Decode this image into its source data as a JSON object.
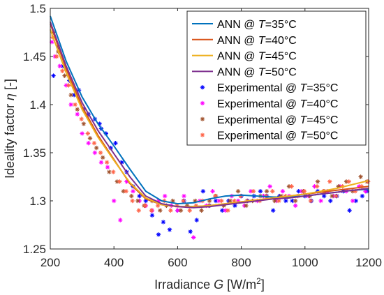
{
  "chart_data": {
    "type": "scatter",
    "xlabel": "Irradiance G [W/m²]",
    "ylabel": "Ideality factor η [-]",
    "xlim": [
      200,
      1200
    ],
    "ylim": [
      1.25,
      1.5
    ],
    "xticks": [
      200,
      400,
      600,
      800,
      1000,
      1200
    ],
    "yticks": [
      1.25,
      1.3,
      1.35,
      1.4,
      1.45,
      1.5
    ],
    "xtick_labels": [
      "200",
      "400",
      "600",
      "800",
      "1000",
      "1200"
    ],
    "ytick_labels": [
      "1.25",
      "1.3",
      "1.35",
      "1.4",
      "1.45",
      "1.5"
    ],
    "grid": false,
    "legend_position": "top-right",
    "lines": [
      {
        "name": "ANN @ T=35°C",
        "color": "#0072BD",
        "x": [
          200,
          250,
          300,
          350,
          400,
          450,
          500,
          550,
          600,
          650,
          700,
          750,
          800,
          850,
          900,
          950,
          1000,
          1050,
          1100,
          1150,
          1200
        ],
        "y": [
          1.492,
          1.445,
          1.408,
          1.38,
          1.357,
          1.333,
          1.31,
          1.3,
          1.297,
          1.298,
          1.302,
          1.305,
          1.306,
          1.305,
          1.304,
          1.304,
          1.305,
          1.307,
          1.309,
          1.311,
          1.312
        ]
      },
      {
        "name": "ANN @ T=40°C",
        "color": "#D95319",
        "x": [
          200,
          250,
          300,
          350,
          400,
          450,
          500,
          550,
          600,
          650,
          700,
          750,
          800,
          850,
          900,
          950,
          1000,
          1050,
          1100,
          1150,
          1200
        ],
        "y": [
          1.484,
          1.437,
          1.398,
          1.368,
          1.343,
          1.318,
          1.302,
          1.296,
          1.294,
          1.294,
          1.295,
          1.297,
          1.299,
          1.301,
          1.303,
          1.305,
          1.307,
          1.309,
          1.311,
          1.313,
          1.315
        ]
      },
      {
        "name": "ANN @ T=45°C",
        "color": "#EDB120",
        "x": [
          200,
          250,
          300,
          350,
          400,
          450,
          500,
          550,
          600,
          650,
          700,
          750,
          800,
          850,
          900,
          950,
          1000,
          1050,
          1100,
          1150,
          1200
        ],
        "y": [
          1.478,
          1.433,
          1.395,
          1.366,
          1.342,
          1.319,
          1.303,
          1.296,
          1.294,
          1.294,
          1.295,
          1.297,
          1.299,
          1.301,
          1.303,
          1.305,
          1.307,
          1.31,
          1.313,
          1.317,
          1.321
        ]
      },
      {
        "name": "ANN @ T=50°C",
        "color": "#7E2F8E",
        "x": [
          200,
          250,
          300,
          350,
          400,
          450,
          500,
          550,
          600,
          650,
          700,
          750,
          800,
          850,
          900,
          950,
          1000,
          1050,
          1100,
          1150,
          1200
        ],
        "y": [
          1.486,
          1.44,
          1.402,
          1.373,
          1.349,
          1.325,
          1.305,
          1.297,
          1.294,
          1.293,
          1.294,
          1.296,
          1.298,
          1.3,
          1.302,
          1.303,
          1.305,
          1.307,
          1.309,
          1.311,
          1.313
        ]
      }
    ],
    "scatter": [
      {
        "name": "Experimental @ T=35°C",
        "color": "#0000FF",
        "points": [
          [
            210,
            1.43
          ],
          [
            225,
            1.46
          ],
          [
            240,
            1.44
          ],
          [
            260,
            1.425
          ],
          [
            275,
            1.41
          ],
          [
            290,
            1.415
          ],
          [
            305,
            1.395
          ],
          [
            320,
            1.39
          ],
          [
            340,
            1.385
          ],
          [
            355,
            1.38
          ],
          [
            360,
            1.375
          ],
          [
            375,
            1.37
          ],
          [
            390,
            1.355
          ],
          [
            405,
            1.36
          ],
          [
            425,
            1.34
          ],
          [
            440,
            1.33
          ],
          [
            460,
            1.315
          ],
          [
            480,
            1.305
          ],
          [
            500,
            1.3
          ],
          [
            520,
            1.285
          ],
          [
            540,
            1.265
          ],
          [
            555,
            1.278
          ],
          [
            575,
            1.27
          ],
          [
            600,
            1.29
          ],
          [
            620,
            1.3
          ],
          [
            640,
            1.268
          ],
          [
            660,
            1.28
          ],
          [
            680,
            1.31
          ],
          [
            700,
            1.295
          ],
          [
            720,
            1.3
          ],
          [
            740,
            1.29
          ],
          [
            760,
            1.3
          ],
          [
            780,
            1.295
          ],
          [
            800,
            1.305
          ],
          [
            820,
            1.3
          ],
          [
            840,
            1.305
          ],
          [
            860,
            1.31
          ],
          [
            880,
            1.305
          ],
          [
            900,
            1.29
          ],
          [
            920,
            1.305
          ],
          [
            940,
            1.3
          ],
          [
            960,
            1.3
          ],
          [
            980,
            1.31
          ],
          [
            1000,
            1.305
          ],
          [
            1020,
            1.3
          ],
          [
            1040,
            1.31
          ],
          [
            1060,
            1.305
          ],
          [
            1080,
            1.3
          ],
          [
            1100,
            1.305
          ],
          [
            1120,
            1.31
          ],
          [
            1140,
            1.29
          ],
          [
            1160,
            1.3
          ],
          [
            1180,
            1.305
          ],
          [
            1195,
            1.31
          ]
        ]
      },
      {
        "name": "Experimental @ T=40°C",
        "color": "#FF00FF",
        "points": [
          [
            205,
            1.465
          ],
          [
            215,
            1.45
          ],
          [
            230,
            1.44
          ],
          [
            250,
            1.42
          ],
          [
            265,
            1.4
          ],
          [
            285,
            1.39
          ],
          [
            300,
            1.37
          ],
          [
            320,
            1.36
          ],
          [
            340,
            1.35
          ],
          [
            360,
            1.34
          ],
          [
            380,
            1.335
          ],
          [
            400,
            1.3
          ],
          [
            420,
            1.28
          ],
          [
            440,
            1.32
          ],
          [
            460,
            1.31
          ],
          [
            480,
            1.3
          ],
          [
            500,
            1.295
          ],
          [
            520,
            1.29
          ],
          [
            540,
            1.3
          ],
          [
            560,
            1.305
          ],
          [
            580,
            1.295
          ],
          [
            600,
            1.29
          ],
          [
            620,
            1.305
          ],
          [
            650,
            1.262
          ],
          [
            670,
            1.3
          ],
          [
            690,
            1.295
          ],
          [
            710,
            1.31
          ],
          [
            730,
            1.3
          ],
          [
            750,
            1.29
          ],
          [
            770,
            1.305
          ],
          [
            790,
            1.3
          ],
          [
            810,
            1.295
          ],
          [
            830,
            1.31
          ],
          [
            850,
            1.3
          ],
          [
            870,
            1.305
          ],
          [
            890,
            1.315
          ],
          [
            910,
            1.3
          ],
          [
            930,
            1.31
          ],
          [
            950,
            1.305
          ],
          [
            970,
            1.295
          ],
          [
            990,
            1.31
          ],
          [
            1010,
            1.305
          ],
          [
            1030,
            1.315
          ],
          [
            1050,
            1.3
          ],
          [
            1070,
            1.31
          ],
          [
            1090,
            1.305
          ],
          [
            1110,
            1.315
          ],
          [
            1130,
            1.31
          ],
          [
            1150,
            1.3
          ],
          [
            1170,
            1.315
          ],
          [
            1190,
            1.31
          ]
        ]
      },
      {
        "name": "Experimental @ T=45°C",
        "color": "#A0522D",
        "points": [
          [
            210,
            1.475
          ],
          [
            225,
            1.455
          ],
          [
            245,
            1.43
          ],
          [
            265,
            1.41
          ],
          [
            285,
            1.395
          ],
          [
            305,
            1.38
          ],
          [
            325,
            1.365
          ],
          [
            345,
            1.355
          ],
          [
            365,
            1.345
          ],
          [
            385,
            1.33
          ],
          [
            410,
            1.32
          ],
          [
            430,
            1.31
          ],
          [
            455,
            1.305
          ],
          [
            475,
            1.3
          ],
          [
            495,
            1.295
          ],
          [
            520,
            1.3
          ],
          [
            545,
            1.29
          ],
          [
            565,
            1.295
          ],
          [
            585,
            1.3
          ],
          [
            610,
            1.29
          ],
          [
            630,
            1.295
          ],
          [
            655,
            1.3
          ],
          [
            675,
            1.29
          ],
          [
            700,
            1.3
          ],
          [
            720,
            1.305
          ],
          [
            745,
            1.295
          ],
          [
            765,
            1.3
          ],
          [
            790,
            1.31
          ],
          [
            815,
            1.295
          ],
          [
            835,
            1.3
          ],
          [
            860,
            1.305
          ],
          [
            880,
            1.31
          ],
          [
            905,
            1.3
          ],
          [
            925,
            1.305
          ],
          [
            950,
            1.315
          ],
          [
            970,
            1.3
          ],
          [
            995,
            1.31
          ],
          [
            1015,
            1.305
          ],
          [
            1040,
            1.32
          ],
          [
            1060,
            1.31
          ],
          [
            1085,
            1.305
          ],
          [
            1105,
            1.315
          ],
          [
            1130,
            1.32
          ],
          [
            1150,
            1.31
          ],
          [
            1175,
            1.325
          ],
          [
            1195,
            1.32
          ]
        ]
      },
      {
        "name": "Experimental @ T=50°C",
        "color": "#FF6347",
        "points": [
          [
            208,
            1.47
          ],
          [
            220,
            1.45
          ],
          [
            238,
            1.435
          ],
          [
            258,
            1.42
          ],
          [
            278,
            1.4
          ],
          [
            298,
            1.385
          ],
          [
            318,
            1.37
          ],
          [
            338,
            1.36
          ],
          [
            358,
            1.35
          ],
          [
            378,
            1.34
          ],
          [
            398,
            1.33
          ],
          [
            418,
            1.32
          ],
          [
            438,
            1.31
          ],
          [
            458,
            1.3
          ],
          [
            478,
            1.29
          ],
          [
            498,
            1.295
          ],
          [
            518,
            1.29
          ],
          [
            538,
            1.295
          ],
          [
            558,
            1.3
          ],
          [
            578,
            1.29
          ],
          [
            598,
            1.295
          ],
          [
            618,
            1.3
          ],
          [
            638,
            1.29
          ],
          [
            658,
            1.295
          ],
          [
            678,
            1.3
          ],
          [
            698,
            1.295
          ],
          [
            718,
            1.305
          ],
          [
            738,
            1.3
          ],
          [
            758,
            1.29
          ],
          [
            778,
            1.3
          ],
          [
            798,
            1.305
          ],
          [
            818,
            1.3
          ],
          [
            838,
            1.31
          ],
          [
            858,
            1.3
          ],
          [
            878,
            1.305
          ],
          [
            898,
            1.31
          ],
          [
            918,
            1.3
          ],
          [
            938,
            1.305
          ],
          [
            958,
            1.315
          ],
          [
            978,
            1.305
          ],
          [
            998,
            1.31
          ],
          [
            1018,
            1.3
          ],
          [
            1038,
            1.315
          ],
          [
            1058,
            1.31
          ],
          [
            1078,
            1.32
          ],
          [
            1098,
            1.305
          ],
          [
            1118,
            1.315
          ],
          [
            1138,
            1.32
          ],
          [
            1158,
            1.31
          ],
          [
            1178,
            1.315
          ],
          [
            1198,
            1.32
          ]
        ]
      }
    ]
  }
}
